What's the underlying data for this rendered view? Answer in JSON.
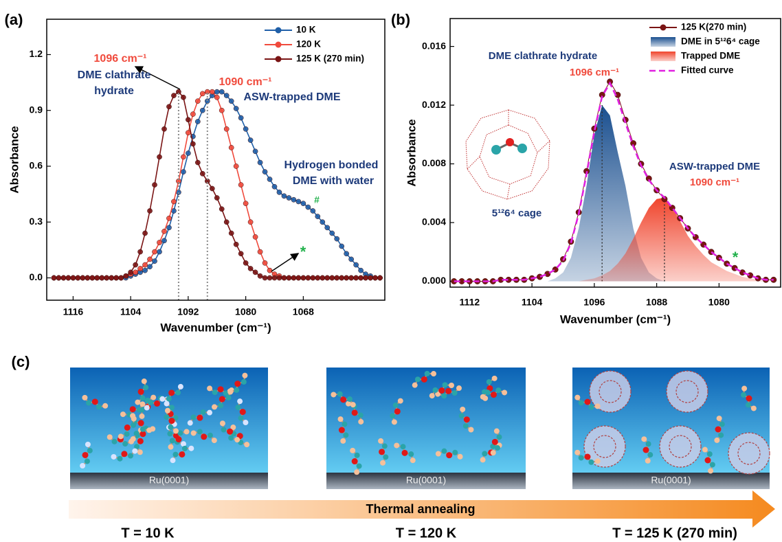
{
  "chart_data": [
    {
      "type": "line",
      "panel_label": "(a)",
      "x_label": "Wavenumber (cm⁻¹)",
      "y_label": "Absorbance",
      "xlim": [
        1121.5,
        1051
      ],
      "ylim": [
        -0.12,
        1.39
      ],
      "xticks": [
        1116,
        1104,
        1092,
        1080,
        1068
      ],
      "yticks": [
        {
          "value": 0,
          "label": "0.0"
        },
        0.3,
        0.6,
        0.9,
        1.2
      ],
      "legend": "upper right",
      "x": [
        1120,
        1119,
        1118,
        1117,
        1116,
        1115,
        1114,
        1113,
        1112,
        1111,
        1110,
        1109,
        1108,
        1107,
        1106,
        1105,
        1104,
        1103,
        1102,
        1101,
        1100,
        1099,
        1098,
        1097,
        1096,
        1095,
        1094,
        1093,
        1092,
        1091,
        1090,
        1089,
        1088,
        1087,
        1086,
        1085,
        1084,
        1083,
        1082,
        1081,
        1080,
        1079,
        1078,
        1077,
        1076,
        1075,
        1074,
        1073,
        1072,
        1071,
        1070,
        1069,
        1068,
        1067,
        1066,
        1065,
        1064,
        1063,
        1062,
        1061,
        1060,
        1059,
        1058,
        1057,
        1056,
        1055,
        1054,
        1053,
        1052
      ],
      "series": [
        {
          "name": "10 K",
          "color": "#1f5fa8",
          "style": "line-dots",
          "values": [
            0,
            0,
            0,
            0,
            0,
            0,
            0,
            0,
            0,
            0,
            0,
            0,
            0,
            0,
            0,
            0,
            0.01,
            0.02,
            0.03,
            0.04,
            0.06,
            0.09,
            0.14,
            0.2,
            0.27,
            0.36,
            0.46,
            0.57,
            0.67,
            0.76,
            0.84,
            0.9,
            0.95,
            0.98,
            1.0,
            1.0,
            0.98,
            0.95,
            0.91,
            0.86,
            0.8,
            0.74,
            0.68,
            0.62,
            0.57,
            0.53,
            0.49,
            0.46,
            0.44,
            0.43,
            0.42,
            0.41,
            0.4,
            0.38,
            0.36,
            0.33,
            0.3,
            0.27,
            0.24,
            0.21,
            0.17,
            0.13,
            0.1,
            0.07,
            0.04,
            0.02,
            0.01,
            0,
            0
          ]
        },
        {
          "name": "120 K",
          "color": "#f04a3c",
          "style": "line-dots",
          "values": [
            0,
            0,
            0,
            0,
            0,
            0,
            0,
            0,
            0,
            0,
            0,
            0,
            0,
            0,
            0,
            0.01,
            0.02,
            0.03,
            0.05,
            0.07,
            0.1,
            0.14,
            0.19,
            0.25,
            0.32,
            0.41,
            0.52,
            0.65,
            0.78,
            0.88,
            0.95,
            0.99,
            1.0,
            1.0,
            0.97,
            0.9,
            0.8,
            0.7,
            0.6,
            0.5,
            0.4,
            0.3,
            0.22,
            0.14,
            0.08,
            0.04,
            0.02,
            0.01,
            0,
            0,
            0,
            0,
            0,
            0,
            0,
            0,
            0,
            0,
            0,
            0,
            0,
            0,
            0,
            0,
            0,
            0,
            0,
            0,
            0
          ]
        },
        {
          "name": "125 K (270 min)",
          "color": "#7a1414",
          "style": "line-dots",
          "values": [
            0,
            0,
            0,
            0,
            0,
            0,
            0,
            0,
            0,
            0,
            0,
            0,
            0,
            0,
            0,
            0.01,
            0.03,
            0.07,
            0.14,
            0.24,
            0.36,
            0.5,
            0.65,
            0.8,
            0.92,
            0.98,
            1.0,
            0.97,
            0.85,
            0.72,
            0.62,
            0.56,
            0.52,
            0.48,
            0.43,
            0.37,
            0.3,
            0.24,
            0.18,
            0.13,
            0.08,
            0.05,
            0.03,
            0.01,
            0,
            0,
            0,
            0,
            0,
            0,
            0,
            0,
            0,
            0,
            0,
            0,
            0,
            0,
            0,
            0,
            0,
            0,
            0,
            0,
            0,
            0,
            0,
            0,
            0
          ]
        }
      ],
      "annotations": [
        "1096 cm⁻¹",
        "DME clathrate",
        "hydrate",
        "1090 cm⁻¹",
        "ASW-trapped DME",
        "Hydrogen bonded",
        "DME with water",
        "#",
        "*"
      ]
    },
    {
      "type": "line",
      "panel_label": "(b)",
      "x_label": "Wavenumber (cm⁻¹)",
      "y_label": "Absorbance",
      "xlim": [
        1114.5,
        1072.1
      ],
      "ylim": [
        -0.0004,
        0.0179
      ],
      "xticks": [
        1112,
        1104,
        1096,
        1088,
        1080
      ],
      "yticks": [
        {
          "value": 0,
          "label": "0.000"
        },
        {
          "value": 0.004,
          "label": "0.004"
        },
        {
          "value": 0.008,
          "label": "0.008"
        },
        {
          "value": 0.012,
          "label": "0.012"
        },
        {
          "value": 0.016,
          "label": "0.016"
        }
      ],
      "legend": "upper right",
      "x": [
        1114,
        1113,
        1112,
        1111,
        1110,
        1109,
        1108,
        1107,
        1106,
        1105,
        1104,
        1103,
        1102,
        1101,
        1100,
        1099,
        1098,
        1097,
        1096,
        1095,
        1094,
        1093,
        1092,
        1091,
        1090,
        1089,
        1088,
        1087,
        1086,
        1085,
        1084,
        1083,
        1082,
        1081,
        1080,
        1079,
        1078,
        1077,
        1076,
        1075,
        1074,
        1073
      ],
      "series": [
        {
          "name": "125 K(270 min)",
          "color": "#7a1414",
          "style": "line-dots",
          "values": [
            0,
            0,
            0,
            0,
            0,
            0,
            0.0001,
            0.0001,
            0.0001,
            0.0001,
            0.0002,
            0.0003,
            0.0005,
            0.0008,
            0.0015,
            0.0027,
            0.0047,
            0.0075,
            0.0104,
            0.0127,
            0.0136,
            0.0127,
            0.011,
            0.0094,
            0.008,
            0.007,
            0.0062,
            0.0056,
            0.005,
            0.0043,
            0.0036,
            0.003,
            0.0025,
            0.002,
            0.0016,
            0.0012,
            0.0009,
            0.0006,
            0.0004,
            0.0002,
            0.0001,
            0.0001
          ]
        },
        {
          "name": "DME in 5¹²6⁴ cage",
          "color": "#1a4f8f",
          "style": "area",
          "values": [
            0,
            0,
            0,
            0,
            0,
            0,
            0,
            0,
            0,
            0,
            0,
            0,
            0,
            0.0002,
            0.0006,
            0.0016,
            0.0036,
            0.0065,
            0.01,
            0.012,
            0.0113,
            0.0088,
            0.0065,
            0.0036,
            0.0016,
            0.0006,
            0.0002,
            0,
            0,
            0,
            0,
            0,
            0,
            0,
            0,
            0,
            0,
            0,
            0,
            0,
            0,
            0
          ]
        },
        {
          "name": "Trapped DME",
          "color": "#f0442c",
          "style": "area",
          "values": [
            0,
            0,
            0,
            0,
            0,
            0,
            0,
            0,
            0,
            0,
            0,
            0,
            0,
            0,
            0,
            0,
            0,
            0.0001,
            0.0002,
            0.0004,
            0.0007,
            0.0012,
            0.0019,
            0.0029,
            0.004,
            0.005,
            0.0056,
            0.0057,
            0.0051,
            0.0041,
            0.0031,
            0.0024,
            0.0018,
            0.0013,
            0.001,
            0.0007,
            0.0005,
            0.0003,
            0.0002,
            0.0001,
            0,
            0
          ]
        },
        {
          "name": "Fitted curve",
          "color": "#e020e0",
          "style": "dashed",
          "values": [
            0,
            0,
            0,
            0,
            0,
            0,
            0.0001,
            0.0001,
            0.0001,
            0.0001,
            0.0002,
            0.0003,
            0.0005,
            0.0008,
            0.0014,
            0.0026,
            0.0046,
            0.0073,
            0.0102,
            0.0126,
            0.0135,
            0.0124,
            0.0108,
            0.0092,
            0.0079,
            0.0069,
            0.0062,
            0.0057,
            0.005,
            0.0043,
            0.0036,
            0.003,
            0.0025,
            0.002,
            0.0016,
            0.0012,
            0.0009,
            0.0006,
            0.0004,
            0.0002,
            0.0001,
            0.0001
          ]
        }
      ],
      "annotations": [
        "DME clathrate hydrate",
        "1096 cm⁻¹",
        "ASW-trapped DME",
        "1090 cm⁻¹",
        "5¹²6⁴ cage",
        "*"
      ]
    }
  ],
  "panel_c": {
    "panel_label": "(c)",
    "substrates": [
      "Ru(0001)",
      "Ru(0001)",
      "Ru(0001)"
    ],
    "arrow_label": "Thermal annealing",
    "temperatures": [
      "T = 10 K",
      "T = 120 K",
      "T = 125 K (270 min)"
    ]
  }
}
